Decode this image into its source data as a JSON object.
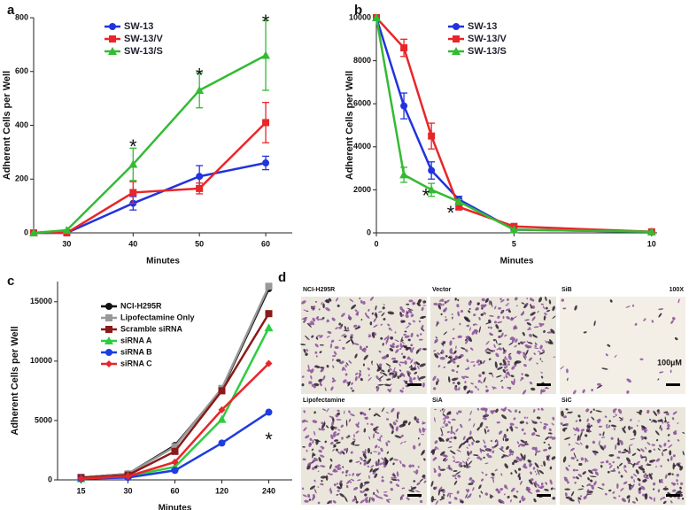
{
  "chart_data": [
    {
      "type": "line",
      "panel_label": "a",
      "xlabel": "Minutes",
      "ylabel": "Adherent Cells per Well",
      "x": [
        25,
        30,
        40,
        50,
        60
      ],
      "xlim": [
        25,
        64
      ],
      "xticks": [
        30,
        40,
        50,
        60
      ],
      "ylim": [
        0,
        800
      ],
      "yticks": [
        0,
        200,
        400,
        600,
        800
      ],
      "legend": "upper center",
      "series": [
        {
          "name": "SW-13",
          "color": "#2233dd",
          "marker": "circle",
          "values": [
            0,
            0,
            110,
            210,
            260
          ],
          "errors": [
            null,
            null,
            25,
            40,
            25
          ]
        },
        {
          "name": "SW-13/V",
          "color": "#e8262a",
          "marker": "square",
          "values": [
            0,
            0,
            150,
            165,
            410
          ],
          "errors": [
            null,
            null,
            40,
            20,
            75
          ]
        },
        {
          "name": "SW-13/S",
          "color": "#33bb33",
          "marker": "triangle",
          "values": [
            0,
            10,
            255,
            530,
            660
          ],
          "errors": [
            null,
            null,
            60,
            65,
            130
          ]
        }
      ],
      "annotations": [
        {
          "text": "*",
          "x": 40,
          "y": 335
        },
        {
          "text": "*",
          "x": 50,
          "y": 600
        },
        {
          "text": "*",
          "x": 60,
          "y": 800
        }
      ]
    },
    {
      "type": "line",
      "panel_label": "b",
      "xlabel": "Minutes",
      "ylabel": "Adherent Cells per Well",
      "x": [
        0,
        1,
        2,
        3,
        5,
        10
      ],
      "xlim": [
        0,
        10.2
      ],
      "xticks": [
        0,
        5,
        10
      ],
      "ylim": [
        0,
        10000
      ],
      "yticks": [
        0,
        2000,
        4000,
        6000,
        8000,
        10000
      ],
      "legend": "upper center",
      "series": [
        {
          "name": "SW-13",
          "color": "#2233dd",
          "marker": "circle",
          "values": [
            10000,
            5900,
            2900,
            1550,
            150,
            50
          ],
          "errors": [
            null,
            600,
            400,
            150,
            null,
            null
          ]
        },
        {
          "name": "SW-13/V",
          "color": "#e8262a",
          "marker": "square",
          "values": [
            10000,
            8600,
            4500,
            1200,
            300,
            50
          ],
          "errors": [
            null,
            400,
            600,
            100,
            null,
            null
          ]
        },
        {
          "name": "SW-13/S",
          "color": "#33bb33",
          "marker": "triangle",
          "values": [
            10000,
            2700,
            2000,
            1450,
            150,
            50
          ],
          "errors": [
            null,
            350,
            300,
            100,
            null,
            null
          ]
        }
      ],
      "annotations": [
        {
          "text": "*",
          "x": 1.8,
          "y": 1900
        },
        {
          "text": "*",
          "x": 2.7,
          "y": 1100
        }
      ]
    },
    {
      "type": "line",
      "panel_label": "c",
      "xlabel": "Minutes",
      "ylabel": "Adherent Cells per Well",
      "categories": [
        "15",
        "30",
        "60",
        "120",
        "240"
      ],
      "ylim": [
        0,
        16700
      ],
      "yticks": [
        0,
        5000,
        10000,
        15000
      ],
      "legend": "upper left",
      "series": [
        {
          "name": "NCI-H295R",
          "color": "#111111",
          "marker": "circle",
          "values": [
            200,
            500,
            2900,
            7600,
            16100
          ]
        },
        {
          "name": "Lipofectamine Only",
          "color": "#999999",
          "marker": "square",
          "values": [
            200,
            500,
            2800,
            7700,
            16300
          ]
        },
        {
          "name": "Scramble siRNA",
          "color": "#8b1a1a",
          "marker": "square",
          "values": [
            200,
            400,
            2400,
            7500,
            14000
          ]
        },
        {
          "name": "siRNA A",
          "color": "#2ecc40",
          "marker": "triangle",
          "values": [
            100,
            300,
            1100,
            5100,
            12800
          ]
        },
        {
          "name": "siRNA B",
          "color": "#1e3de0",
          "marker": "circle",
          "values": [
            100,
            200,
            800,
            3100,
            5700
          ]
        },
        {
          "name": "siRNA C",
          "color": "#e8262a",
          "marker": "diamond",
          "values": [
            100,
            300,
            1500,
            5900,
            9800
          ]
        }
      ],
      "annotations": [
        {
          "text": "*",
          "x": "240",
          "y": 3700
        }
      ]
    }
  ],
  "panel_d": {
    "panel_label": "d",
    "image_labels": [
      "NCI-H295R",
      "Vector",
      "SiB",
      "Lipofectamine",
      "SiA",
      "SiC"
    ],
    "magnification": "100X",
    "scale_bar_label": "100µM"
  }
}
